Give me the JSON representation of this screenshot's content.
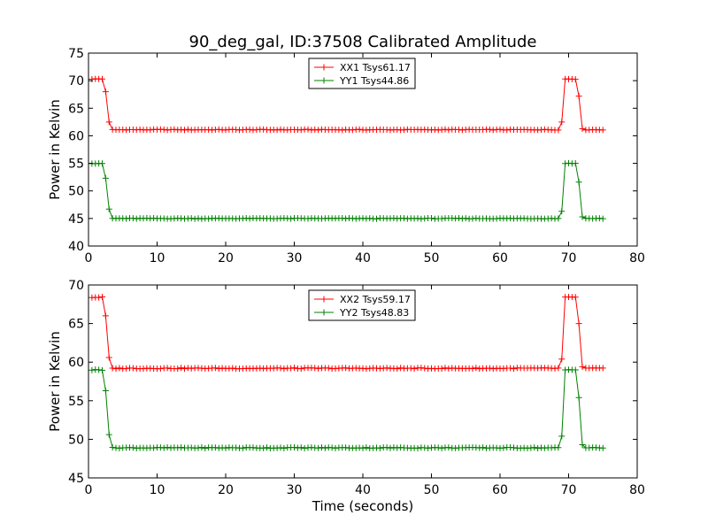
{
  "figure": {
    "title": "90_deg_gal, ID:37508 Calibrated Amplitude"
  },
  "chart_data": [
    {
      "type": "line",
      "title": "90_deg_gal, ID:37508 Calibrated Amplitude",
      "xlabel": "",
      "ylabel": "Power in Kelvin",
      "xlim": [
        0,
        80
      ],
      "ylim": [
        40,
        75
      ],
      "x_ticks": [
        "0",
        "10",
        "20",
        "30",
        "40",
        "50",
        "60",
        "70",
        "80"
      ],
      "y_ticks": [
        "40",
        "45",
        "50",
        "55",
        "60",
        "65",
        "70",
        "75"
      ],
      "grid": false,
      "legend_position": "upper-center",
      "x": {
        "start": 0.5,
        "step": 0.5,
        "count": 150
      },
      "series": [
        {
          "name": "XX1 Tsys61.17",
          "color": "#ff0000",
          "marker": "+",
          "baseline": 61.1,
          "high": 70.3,
          "pulses": [
            {
              "t_ramp": [
                [
                  2.5,
                  68.0
                ],
                [
                  3.0,
                  62.5
                ]
              ],
              "on": [
                0.5,
                2.0
              ]
            },
            {
              "t_ramp": [
                [
                  69.0,
                  62.5
                ]
              ],
              "on": [
                69.5,
                71.0
              ],
              "t_fall": [
                [
                  71.5,
                  67.2
                ],
                [
                  72.0,
                  61.3
                ]
              ]
            }
          ]
        },
        {
          "name": "YY1 Tsys44.86",
          "color": "#008000",
          "marker": "+",
          "baseline": 45.0,
          "high": 55.0,
          "pulses": [
            {
              "t_ramp": [
                [
                  2.5,
                  52.3
                ],
                [
                  3.0,
                  46.7
                ]
              ],
              "on": [
                0.5,
                2.0
              ]
            },
            {
              "t_ramp": [
                [
                  69.0,
                  46.3
                ]
              ],
              "on": [
                69.5,
                71.0
              ],
              "t_fall": [
                [
                  71.5,
                  51.6
                ],
                [
                  72.0,
                  45.3
                ]
              ]
            }
          ]
        }
      ]
    },
    {
      "type": "line",
      "title": "",
      "xlabel": "Time (seconds)",
      "ylabel": "Power in Kelvin",
      "xlim": [
        0,
        80
      ],
      "ylim": [
        45,
        70
      ],
      "x_ticks": [
        "0",
        "10",
        "20",
        "30",
        "40",
        "50",
        "60",
        "70",
        "80"
      ],
      "y_ticks": [
        "45",
        "50",
        "55",
        "60",
        "65",
        "70"
      ],
      "grid": false,
      "legend_position": "upper-center",
      "x": {
        "start": 0.5,
        "step": 0.5,
        "count": 150
      },
      "series": [
        {
          "name": "XX2 Tsys59.17",
          "color": "#ff0000",
          "marker": "+",
          "baseline": 59.2,
          "high": 68.4,
          "pulses": [
            {
              "t_ramp": [
                [
                  2.5,
                  66.0
                ],
                [
                  3.0,
                  60.6
                ]
              ],
              "on": [
                0.5,
                2.0
              ]
            },
            {
              "t_ramp": [
                [
                  69.0,
                  60.4
                ]
              ],
              "on": [
                69.5,
                71.0
              ],
              "t_fall": [
                [
                  71.5,
                  65.0
                ],
                [
                  72.0,
                  59.4
                ]
              ]
            }
          ]
        },
        {
          "name": "YY2 Tsys48.83",
          "color": "#008000",
          "marker": "+",
          "baseline": 48.9,
          "high": 59.0,
          "pulses": [
            {
              "t_ramp": [
                [
                  2.5,
                  56.3
                ],
                [
                  3.0,
                  50.6
                ]
              ],
              "on": [
                0.5,
                2.0
              ]
            },
            {
              "t_ramp": [
                [
                  69.0,
                  50.4
                ]
              ],
              "on": [
                69.5,
                71.0
              ],
              "t_fall": [
                [
                  71.5,
                  55.4
                ],
                [
                  72.0,
                  49.3
                ]
              ]
            }
          ]
        }
      ]
    }
  ]
}
